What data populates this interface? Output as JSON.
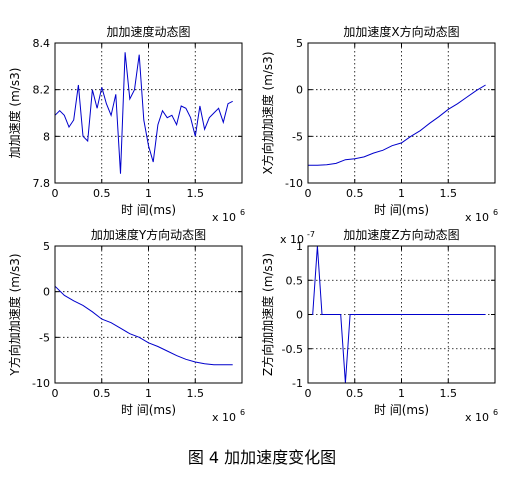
{
  "caption": "图 4  加加速度变化图",
  "colors": {
    "line": "#0000cc",
    "grid": "#000000",
    "axes": "#000000",
    "background": "#ffffff"
  },
  "chart_data": [
    {
      "type": "line",
      "title": "加加速度动态图",
      "xlabel": "时 间(ms)",
      "ylabel": "加加速度 (m/s3)",
      "xlim": [
        0,
        2000000
      ],
      "ylim": [
        7.8,
        8.4
      ],
      "xticks": [
        0,
        500000,
        1000000,
        1500000
      ],
      "xtick_labels": [
        "0",
        "0.5",
        "1",
        "1.5"
      ],
      "yticks": [
        7.8,
        8,
        8.2,
        8.4
      ],
      "ytick_labels": [
        "7.8",
        "8",
        "8.2",
        "8.4"
      ],
      "x_exponent": "x 10",
      "x_exponent_power": "6",
      "y_exponent": "",
      "y_exponent_power": "",
      "grid": true,
      "series": [
        {
          "x": [
            0,
            50000,
            100000,
            150000,
            200000,
            250000,
            300000,
            350000,
            400000,
            450000,
            500000,
            550000,
            600000,
            650000,
            700000,
            750000,
            800000,
            850000,
            900000,
            950000,
            1000000,
            1050000,
            1100000,
            1150000,
            1200000,
            1250000,
            1300000,
            1350000,
            1400000,
            1450000,
            1500000,
            1550000,
            1600000,
            1650000,
            1700000,
            1750000,
            1800000,
            1850000,
            1900000
          ],
          "y": [
            8.09,
            8.11,
            8.09,
            8.04,
            8.07,
            8.22,
            8.0,
            7.98,
            8.2,
            8.12,
            8.21,
            8.14,
            8.09,
            8.18,
            7.84,
            8.36,
            8.16,
            8.2,
            8.35,
            8.07,
            7.96,
            7.89,
            8.05,
            8.11,
            8.08,
            8.09,
            8.05,
            8.13,
            8.12,
            8.08,
            8.0,
            8.13,
            8.03,
            8.08,
            8.1,
            8.12,
            8.06,
            8.14,
            8.15
          ]
        }
      ]
    },
    {
      "type": "line",
      "title": "加加速度X方向动态图",
      "xlabel": "时 间(ms)",
      "ylabel": "X方向加加速度 (m/s3)",
      "xlim": [
        0,
        2000000
      ],
      "ylim": [
        -10,
        5
      ],
      "xticks": [
        0,
        500000,
        1000000,
        1500000
      ],
      "xtick_labels": [
        "0",
        "0.5",
        "1",
        "1.5"
      ],
      "yticks": [
        -10,
        -5,
        0,
        5
      ],
      "ytick_labels": [
        "-10",
        "-5",
        "0",
        "5"
      ],
      "x_exponent": "x 10",
      "x_exponent_power": "6",
      "y_exponent": "",
      "y_exponent_power": "",
      "grid": true,
      "series": [
        {
          "x": [
            0,
            100000,
            200000,
            300000,
            400000,
            500000,
            600000,
            700000,
            800000,
            900000,
            1000000,
            1100000,
            1200000,
            1300000,
            1400000,
            1500000,
            1600000,
            1700000,
            1800000,
            1900000
          ],
          "y": [
            -8.1,
            -8.1,
            -8.05,
            -7.9,
            -7.5,
            -7.4,
            -7.2,
            -6.8,
            -6.5,
            -6.0,
            -5.7,
            -5.0,
            -4.4,
            -3.6,
            -2.9,
            -2.1,
            -1.5,
            -0.8,
            -0.1,
            0.5
          ]
        }
      ]
    },
    {
      "type": "line",
      "title": "加加速度Y方向动态图",
      "xlabel": "时 间(ms)",
      "ylabel": "Y方向加加速度 (m/s3)",
      "xlim": [
        0,
        2000000
      ],
      "ylim": [
        -10,
        5
      ],
      "xticks": [
        0,
        500000,
        1000000,
        1500000
      ],
      "xtick_labels": [
        "0",
        "0.5",
        "1",
        "1.5"
      ],
      "yticks": [
        -10,
        -5,
        0,
        5
      ],
      "ytick_labels": [
        "-10",
        "-5",
        "0",
        "5"
      ],
      "x_exponent": "x 10",
      "x_exponent_power": "6",
      "y_exponent": "",
      "y_exponent_power": "",
      "grid": true,
      "series": [
        {
          "x": [
            0,
            100000,
            200000,
            300000,
            400000,
            500000,
            600000,
            700000,
            800000,
            900000,
            1000000,
            1100000,
            1200000,
            1300000,
            1400000,
            1500000,
            1600000,
            1700000,
            1800000,
            1900000
          ],
          "y": [
            0.6,
            -0.4,
            -1.0,
            -1.5,
            -2.2,
            -3.0,
            -3.4,
            -4.0,
            -4.6,
            -5.0,
            -5.6,
            -6.0,
            -6.5,
            -7.0,
            -7.4,
            -7.7,
            -7.9,
            -8.0,
            -8.0,
            -8.0
          ]
        }
      ]
    },
    {
      "type": "line",
      "title": "加加速度Z方向动态图",
      "xlabel": "时 间(ms)",
      "ylabel": "Z方向加加速度 (m/s3)",
      "xlim": [
        0,
        2000000
      ],
      "ylim": [
        -1,
        1
      ],
      "xticks": [
        0,
        500000,
        1000000,
        1500000
      ],
      "xtick_labels": [
        "0",
        "0.5",
        "1",
        "1.5"
      ],
      "yticks": [
        -1,
        -0.5,
        0,
        0.5,
        1
      ],
      "ytick_labels": [
        "-1",
        "-0.5",
        "0",
        "0.5",
        "1"
      ],
      "x_exponent": "x 10",
      "x_exponent_power": "6",
      "y_exponent": "x 10",
      "y_exponent_power": "-7",
      "grid": true,
      "series": [
        {
          "x": [
            0,
            50000,
            100000,
            150000,
            200000,
            250000,
            300000,
            350000,
            400000,
            450000,
            500000,
            1000000,
            1500000,
            1900000
          ],
          "y": [
            0,
            0,
            1.0,
            0,
            0,
            0,
            0,
            0,
            -1.0,
            0,
            0,
            0,
            0,
            0
          ]
        }
      ]
    }
  ]
}
